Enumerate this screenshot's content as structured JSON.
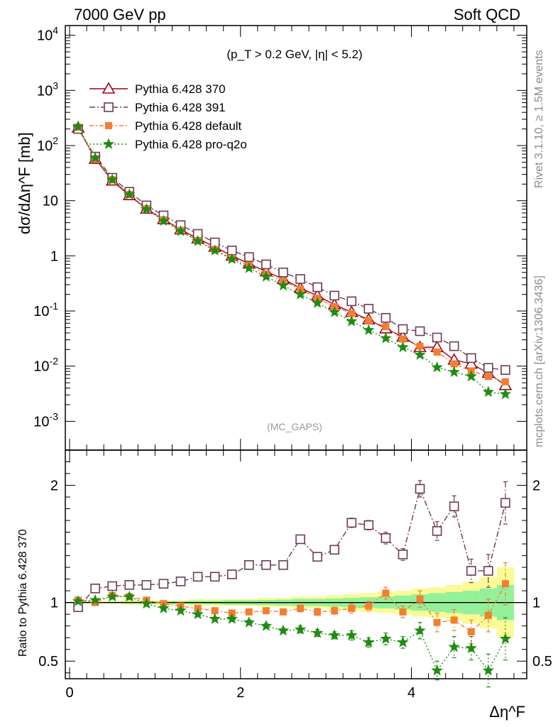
{
  "header": {
    "left": "7000 GeV pp",
    "right": "Soft QCD"
  },
  "side": {
    "rivet": "Rivet 3.1.10, ≥ 1.5M events",
    "source": "mcplots.cern.ch [arXiv:1306.3436]"
  },
  "colors": {
    "p370": "#a0001c",
    "p391": "#6e3a52",
    "pdef": "#f27f31",
    "pq2o": "#1e8c12",
    "band_inner": "#95f09a",
    "band_outer": "#fafa96"
  },
  "chart_data": [
    {
      "type": "line",
      "xlabel": "Δη^F",
      "ylabel": "dσ/dΔη^F [mb]",
      "annotation": "(p_T > 0.2 GeV, |η| < 5.2)",
      "analysis": "(MC_GAPS)",
      "log_y": true,
      "xlim": [
        -0.05,
        5.35
      ],
      "ylim": [
        0.0003,
        15000
      ],
      "yticks": [
        "10^{-3}",
        "10^{-2}",
        "10^{-1}",
        "1",
        "10",
        "10^{2}",
        "10^{3}",
        "10^{4}"
      ],
      "x": [
        0.1,
        0.3,
        0.5,
        0.7,
        0.9,
        1.1,
        1.3,
        1.5,
        1.7,
        1.9,
        2.1,
        2.3,
        2.5,
        2.7,
        2.9,
        3.1,
        3.3,
        3.5,
        3.7,
        3.9,
        4.1,
        4.3,
        4.5,
        4.7,
        4.9,
        5.1
      ],
      "series": [
        {
          "name": "Pythia 6.428 370",
          "marker": "triangle",
          "values": [
            210,
            57,
            23,
            12.5,
            7.1,
            4.6,
            3.0,
            2.05,
            1.45,
            1.0,
            0.72,
            0.52,
            0.38,
            0.26,
            0.19,
            0.13,
            0.095,
            0.07,
            0.048,
            0.034,
            0.022,
            0.022,
            0.013,
            0.011,
            0.0075,
            0.0045
          ]
        },
        {
          "name": "Pythia 6.428 391",
          "marker": "open-square",
          "values": [
            200,
            63,
            26,
            14.5,
            8.2,
            5.4,
            3.6,
            2.5,
            1.75,
            1.25,
            0.95,
            0.7,
            0.5,
            0.38,
            0.27,
            0.19,
            0.15,
            0.11,
            0.075,
            0.047,
            0.043,
            0.033,
            0.023,
            0.014,
            0.0093,
            0.0085
          ]
        },
        {
          "name": "Pythia 6.428 default",
          "marker": "filled-square",
          "values": [
            215,
            57,
            24,
            13,
            7.2,
            4.5,
            2.9,
            1.9,
            1.3,
            0.9,
            0.67,
            0.47,
            0.35,
            0.25,
            0.17,
            0.12,
            0.09,
            0.067,
            0.052,
            0.031,
            0.023,
            0.018,
            0.011,
            0.0082,
            0.0065,
            0.0052
          ]
        },
        {
          "name": "Pythia 6.428 pro-q2o",
          "marker": "star",
          "values": [
            220,
            60,
            24,
            13,
            7.0,
            4.3,
            2.8,
            1.85,
            1.25,
            0.87,
            0.6,
            0.42,
            0.29,
            0.2,
            0.14,
            0.095,
            0.065,
            0.045,
            0.032,
            0.022,
            0.016,
            0.0095,
            0.0078,
            0.0065,
            0.0034,
            0.0031
          ]
        }
      ],
      "legend": "top-left"
    },
    {
      "type": "line",
      "xlabel": "Δη^F",
      "ylabel": "Ratio to Pythia 6.428 370",
      "xlim": [
        -0.05,
        5.35
      ],
      "ylim": [
        0.35,
        2.3
      ],
      "xticks": [
        "0",
        "2",
        "4"
      ],
      "yticks": [
        "0.5",
        "1",
        "2"
      ],
      "x": [
        0.1,
        0.3,
        0.5,
        0.7,
        0.9,
        1.1,
        1.3,
        1.5,
        1.7,
        1.9,
        2.1,
        2.3,
        2.5,
        2.7,
        2.9,
        3.1,
        3.3,
        3.5,
        3.7,
        3.9,
        4.1,
        4.3,
        4.5,
        4.7,
        4.9,
        5.1
      ],
      "band_outer": [
        0.01,
        0.01,
        0.01,
        0.02,
        0.02,
        0.02,
        0.02,
        0.03,
        0.03,
        0.03,
        0.03,
        0.04,
        0.04,
        0.05,
        0.05,
        0.06,
        0.07,
        0.08,
        0.09,
        0.1,
        0.12,
        0.13,
        0.15,
        0.18,
        0.22,
        0.3
      ],
      "band_inner": [
        0.005,
        0.005,
        0.006,
        0.008,
        0.01,
        0.01,
        0.012,
        0.015,
        0.015,
        0.02,
        0.02,
        0.022,
        0.025,
        0.03,
        0.03,
        0.035,
        0.04,
        0.045,
        0.05,
        0.06,
        0.07,
        0.08,
        0.09,
        0.1,
        0.12,
        0.15
      ],
      "series": [
        {
          "name": "Pythia 6.428 391",
          "values": [
            0.96,
            1.12,
            1.14,
            1.15,
            1.15,
            1.16,
            1.18,
            1.22,
            1.22,
            1.24,
            1.32,
            1.32,
            1.32,
            1.54,
            1.39,
            1.45,
            1.68,
            1.66,
            1.55,
            1.41,
            1.97,
            1.61,
            1.82,
            1.27,
            1.27,
            1.85
          ]
        },
        {
          "name": "Pythia 6.428 default",
          "values": [
            1.02,
            1.0,
            1.06,
            1.05,
            1.02,
            0.99,
            0.97,
            0.95,
            0.93,
            0.91,
            0.92,
            0.93,
            0.92,
            0.95,
            0.92,
            0.93,
            0.95,
            0.97,
            1.08,
            0.92,
            1.03,
            0.83,
            0.85,
            0.75,
            0.89,
            1.16
          ]
        },
        {
          "name": "Pythia 6.428 pro-q2o",
          "values": [
            1.01,
            1.02,
            1.05,
            1.05,
            0.99,
            0.95,
            0.93,
            0.9,
            0.86,
            0.86,
            0.83,
            0.8,
            0.76,
            0.77,
            0.74,
            0.72,
            0.72,
            0.66,
            0.69,
            0.66,
            0.76,
            0.42,
            0.62,
            0.61,
            0.42,
            0.69
          ]
        }
      ],
      "errors": {
        "Pythia 6.428 391": [
          0.01,
          0.01,
          0.01,
          0.01,
          0.01,
          0.01,
          0.01,
          0.01,
          0.01,
          0.02,
          0.02,
          0.02,
          0.02,
          0.03,
          0.03,
          0.03,
          0.04,
          0.04,
          0.05,
          0.05,
          0.07,
          0.08,
          0.09,
          0.1,
          0.14,
          0.18
        ],
        "Pythia 6.428 default": [
          0.01,
          0.01,
          0.01,
          0.01,
          0.01,
          0.01,
          0.01,
          0.01,
          0.01,
          0.02,
          0.02,
          0.02,
          0.02,
          0.03,
          0.03,
          0.03,
          0.04,
          0.04,
          0.05,
          0.05,
          0.07,
          0.08,
          0.09,
          0.1,
          0.14,
          0.18
        ],
        "Pythia 6.428 pro-q2o": [
          0.01,
          0.01,
          0.01,
          0.01,
          0.01,
          0.01,
          0.01,
          0.01,
          0.01,
          0.02,
          0.02,
          0.02,
          0.02,
          0.03,
          0.03,
          0.03,
          0.04,
          0.04,
          0.05,
          0.05,
          0.07,
          0.08,
          0.09,
          0.1,
          0.14,
          0.18
        ]
      }
    }
  ]
}
